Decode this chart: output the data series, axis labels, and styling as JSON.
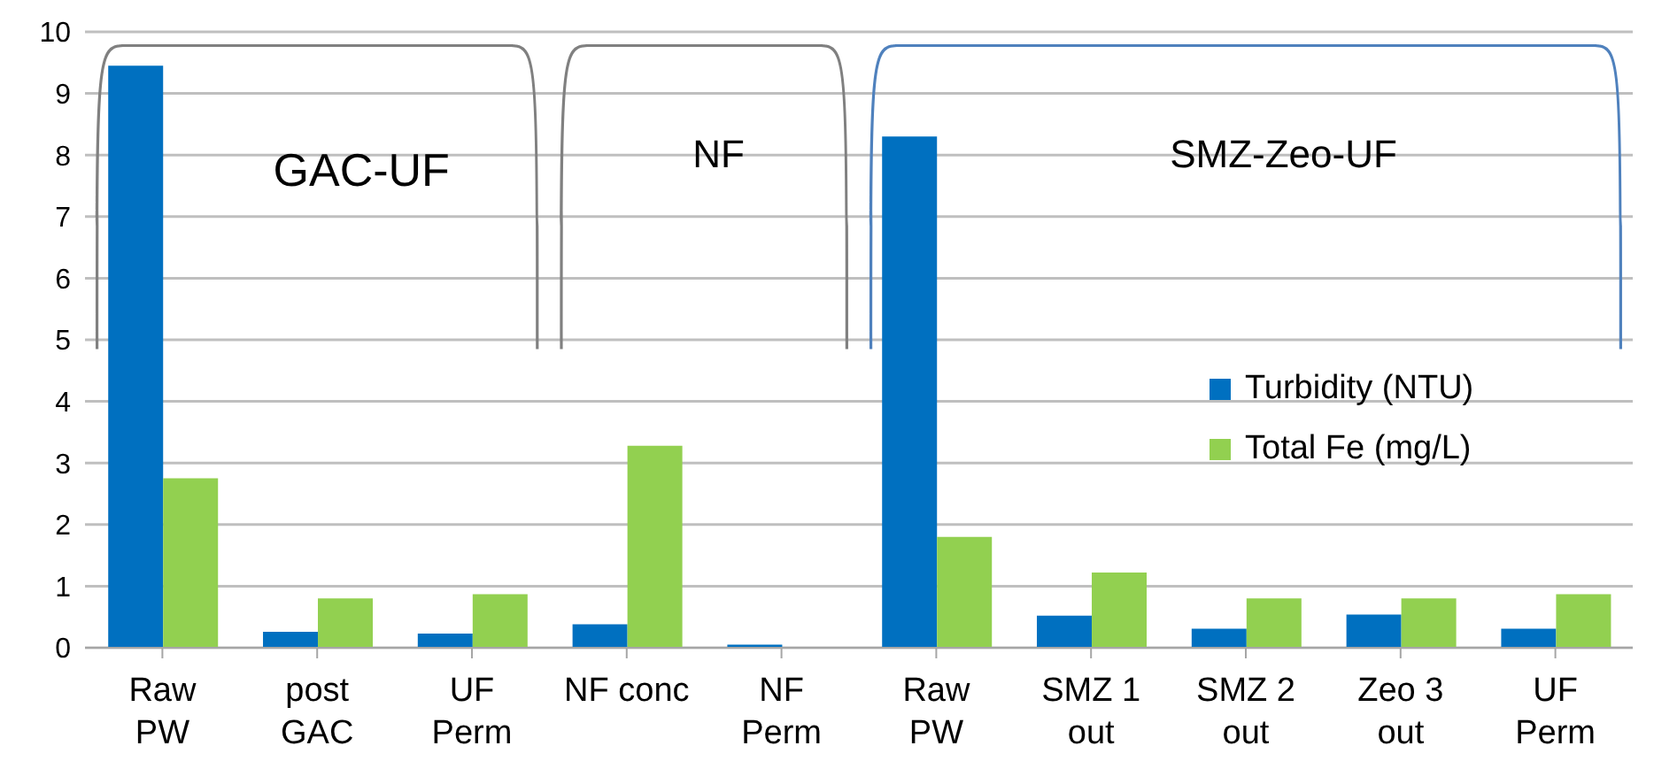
{
  "chart_data": {
    "type": "bar",
    "categories": [
      "Raw\nPW",
      "post\nGAC",
      "UF\nPerm",
      "NF conc",
      "NF\nPerm",
      "Raw\nPW",
      "SMZ 1\nout",
      "SMZ 2\nout",
      "Zeo 3\nout",
      "UF\nPerm"
    ],
    "series": [
      {
        "name": "Turbidity (NTU)",
        "color": "#0070c0",
        "values": [
          9.45,
          0.26,
          0.23,
          0.38,
          0.05,
          8.3,
          0.52,
          0.31,
          0.54,
          0.31
        ]
      },
      {
        "name": "Total Fe (mg/L)",
        "color": "#92d050",
        "values": [
          2.75,
          0.8,
          0.87,
          3.28,
          null,
          1.8,
          1.22,
          0.8,
          0.8,
          0.87
        ]
      }
    ],
    "ylim": [
      0,
      10
    ],
    "yticks": [
      0,
      1,
      2,
      3,
      4,
      5,
      6,
      7,
      8,
      9,
      10
    ],
    "grid": "y",
    "legend": "right",
    "annotations": [
      "GAC-UF",
      "NF",
      "SMZ-Zeo-UF"
    ]
  }
}
